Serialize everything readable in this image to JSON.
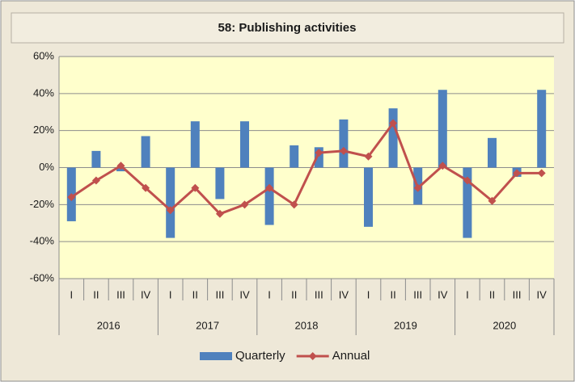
{
  "chart_data": {
    "type": "bar_line",
    "title": "58: Publishing activities",
    "categories": [
      "I",
      "II",
      "III",
      "IV",
      "I",
      "II",
      "III",
      "IV",
      "I",
      "II",
      "III",
      "IV",
      "I",
      "II",
      "III",
      "IV",
      "I",
      "II",
      "III",
      "IV"
    ],
    "groups": [
      "2016",
      "2017",
      "2018",
      "2019",
      "2020"
    ],
    "series": [
      {
        "name": "Quarterly",
        "type": "bar",
        "color": "#4f81bd",
        "values": [
          -29,
          9,
          -2,
          17,
          -38,
          25,
          -17,
          25,
          -31,
          12,
          11,
          26,
          -32,
          32,
          -20,
          42,
          -38,
          16,
          -5,
          42
        ]
      },
      {
        "name": "Annual",
        "type": "line",
        "color": "#c0504d",
        "values": [
          -16,
          -7,
          1,
          -11,
          -23,
          -11,
          -25,
          -20,
          -11,
          -20,
          8,
          9,
          6,
          24,
          -11,
          1,
          -7,
          -18,
          -3,
          -3
        ]
      }
    ],
    "ylim": [
      -60,
      60
    ],
    "yticks": [
      {
        "value": -60,
        "label": "-60%"
      },
      {
        "value": -40,
        "label": "-40%"
      },
      {
        "value": -20,
        "label": "-20%"
      },
      {
        "value": 0,
        "label": "0%"
      },
      {
        "value": 20,
        "label": "20%"
      },
      {
        "value": 40,
        "label": "40%"
      },
      {
        "value": 60,
        "label": "60%"
      }
    ],
    "grid": true,
    "legend": "bottom"
  }
}
